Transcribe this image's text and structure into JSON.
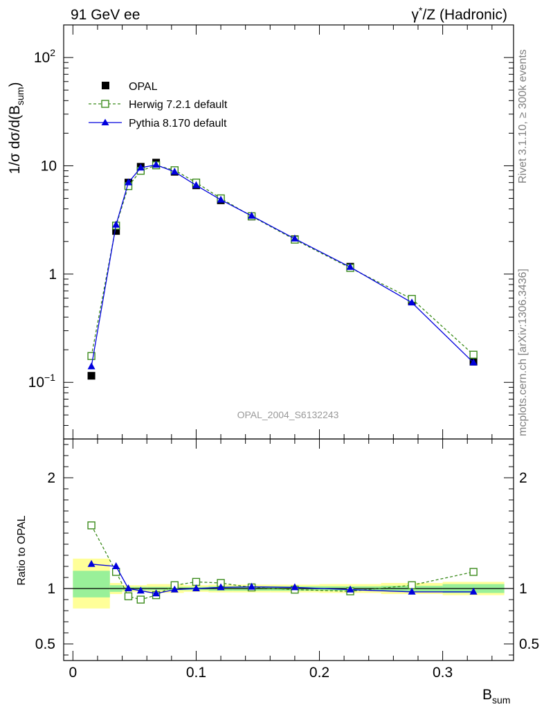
{
  "header": {
    "left": "91 GeV ee",
    "right_prefix": "γ",
    "right_sup": "*",
    "right_suffix": "/Z (Hadronic)"
  },
  "side": {
    "rivet": "Rivet 3.1.10, ≥ 300k events",
    "mcplots": "mcplots.cern.ch [arXiv:1306.3436]"
  },
  "watermark": "OPAL_2004_S6132243",
  "ylabel_main": {
    "pre": "1/σ dσ/d(B",
    "sub": "sum",
    "post": ")"
  },
  "ylabel_ratio": "Ratio to OPAL",
  "xlabel": {
    "main": "B",
    "sub": "sum"
  },
  "colors": {
    "opal": "#000000",
    "herwig": "#3a8a1a",
    "pythia": "#0000dd",
    "band_inner": "#99f099",
    "band_outer": "#ffff99"
  },
  "chart_data": [
    {
      "type": "line",
      "log_y": true,
      "ylim": [
        0.03,
        200
      ],
      "xlim": [
        -0.0075,
        0.3575
      ],
      "yticks": [
        {
          "value": 0.1,
          "base": "10",
          "exp": "−1"
        },
        {
          "value": 1,
          "label": "1"
        },
        {
          "value": 10,
          "label": "10"
        },
        {
          "value": 100,
          "base": "10",
          "exp": "2"
        }
      ],
      "series": [
        {
          "name": "OPAL",
          "marker": "square-filled",
          "x": [
            0.015,
            0.035,
            0.045,
            0.055,
            0.0675,
            0.0825,
            0.1,
            0.12,
            0.145,
            0.18,
            0.225,
            0.275,
            0.325
          ],
          "y": [
            0.115,
            2.5,
            7.0,
            9.8,
            10.7,
            8.8,
            6.6,
            4.8,
            3.4,
            2.1,
            1.17,
            0.56,
            0.155
          ]
        },
        {
          "name": "Herwig 7.2.1 default",
          "marker": "square-open",
          "x": [
            0.015,
            0.035,
            0.045,
            0.055,
            0.0675,
            0.0825,
            0.1,
            0.12,
            0.145,
            0.18,
            0.225,
            0.275,
            0.325
          ],
          "y": [
            0.175,
            2.8,
            6.5,
            9.0,
            10.1,
            9.1,
            7.0,
            5.0,
            3.42,
            2.08,
            1.14,
            0.59,
            0.18
          ]
        },
        {
          "name": "Pythia 8.170 default",
          "marker": "triangle-filled",
          "x": [
            0.015,
            0.035,
            0.045,
            0.055,
            0.0675,
            0.0825,
            0.1,
            0.12,
            0.145,
            0.18,
            0.225,
            0.275,
            0.325
          ],
          "y": [
            0.14,
            2.85,
            7.0,
            9.6,
            10.2,
            8.8,
            6.6,
            4.85,
            3.45,
            2.12,
            1.16,
            0.545,
            0.152
          ]
        }
      ]
    },
    {
      "type": "line",
      "ylim": [
        0.35,
        2.35
      ],
      "xlim": [
        -0.0075,
        0.3575
      ],
      "xticks": [
        0,
        0.1,
        0.2,
        0.3
      ],
      "xtick_labels": [
        "0",
        "0.1",
        "0.2",
        "0.3"
      ],
      "yticks": [
        0.5,
        1,
        2
      ],
      "ytick_labels": [
        "0.5",
        "1",
        "2"
      ],
      "reference_line": 1,
      "bins": [
        0,
        0.03,
        0.04,
        0.05,
        0.06,
        0.075,
        0.09,
        0.11,
        0.13,
        0.16,
        0.2,
        0.25,
        0.3,
        0.35
      ],
      "band_inner": [
        [
          0.92,
          1.16
        ],
        [
          0.97,
          1.03
        ],
        [
          0.985,
          1.015
        ],
        [
          0.985,
          1.015
        ],
        [
          0.985,
          1.015
        ],
        [
          0.985,
          1.015
        ],
        [
          0.985,
          1.015
        ],
        [
          0.98,
          1.02
        ],
        [
          0.98,
          1.02
        ],
        [
          0.98,
          1.02
        ],
        [
          0.98,
          1.02
        ],
        [
          0.975,
          1.025
        ],
        [
          0.96,
          1.04
        ]
      ],
      "band_outer": [
        [
          0.82,
          1.27
        ],
        [
          0.95,
          1.05
        ],
        [
          0.97,
          1.03
        ],
        [
          0.97,
          1.03
        ],
        [
          0.96,
          1.04
        ],
        [
          0.96,
          1.04
        ],
        [
          0.97,
          1.03
        ],
        [
          0.965,
          1.035
        ],
        [
          0.965,
          1.035
        ],
        [
          0.965,
          1.035
        ],
        [
          0.96,
          1.04
        ],
        [
          0.95,
          1.05
        ],
        [
          0.94,
          1.06
        ]
      ],
      "series": [
        {
          "name": "Herwig 7.2.1 default",
          "marker": "square-open",
          "x": [
            0.015,
            0.035,
            0.045,
            0.055,
            0.0675,
            0.0825,
            0.1,
            0.12,
            0.145,
            0.18,
            0.225,
            0.275,
            0.325
          ],
          "y": [
            1.57,
            1.15,
            0.93,
            0.9,
            0.94,
            1.03,
            1.06,
            1.05,
            1.01,
            0.99,
            0.975,
            1.03,
            1.15
          ]
        },
        {
          "name": "Pythia 8.170 default",
          "marker": "triangle-filled",
          "x": [
            0.015,
            0.035,
            0.045,
            0.055,
            0.0675,
            0.0825,
            0.1,
            0.12,
            0.145,
            0.18,
            0.225,
            0.275,
            0.325
          ],
          "y": [
            1.22,
            1.2,
            1.0,
            0.98,
            0.955,
            0.99,
            1.0,
            1.01,
            1.015,
            1.01,
            0.99,
            0.97,
            0.97
          ]
        }
      ]
    }
  ]
}
